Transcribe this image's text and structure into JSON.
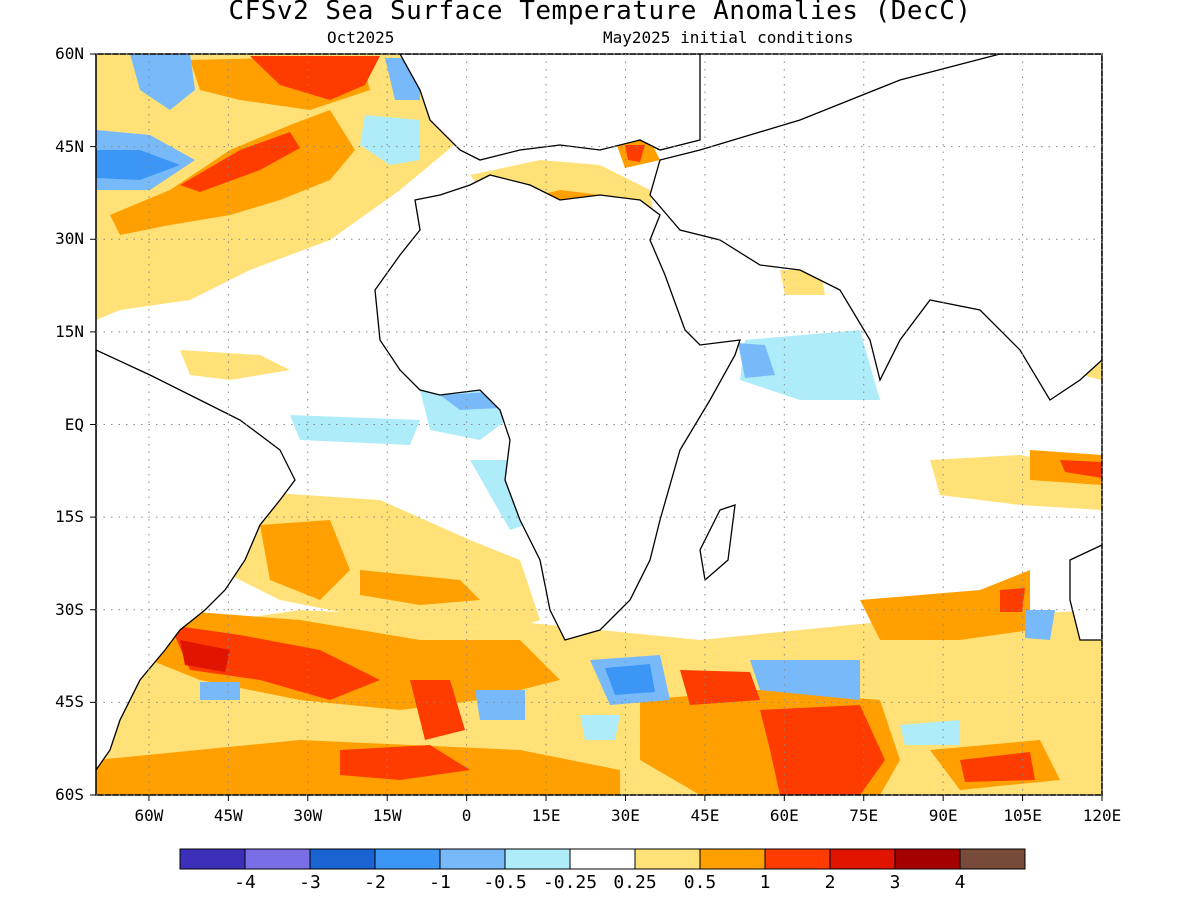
{
  "title": "CFSv2 Sea Surface Temperature Anomalies (DecC)",
  "subtitle_left": "Oct2025",
  "subtitle_right": "May2025 initial conditions",
  "map": {
    "projection": "cylindrical-equidistant",
    "lon_range": [
      -70,
      120
    ],
    "lat_range": [
      -60,
      60
    ],
    "lat_labels": [
      "60N",
      "45N",
      "30N",
      "15N",
      "EQ",
      "15S",
      "30S",
      "45S",
      "60S"
    ],
    "lon_labels": [
      "60W",
      "45W",
      "30W",
      "15W",
      "0",
      "15E",
      "30E",
      "45E",
      "60E",
      "75E",
      "90E",
      "105E",
      "120E"
    ],
    "grid": "dotted",
    "land_color": "#ffffff",
    "coastline_color": "#000000"
  },
  "colorbar": {
    "colors": [
      "#3c2fb9",
      "#7a6ee6",
      "#1964d2",
      "#3c96f5",
      "#78b9fa",
      "#afecfa",
      "#ffffff",
      "#ffe178",
      "#ffa000",
      "#ff3c00",
      "#e11400",
      "#a50000",
      "#784a3a"
    ],
    "labels": [
      "-4",
      "-3",
      "-2",
      "-1",
      "-0.5",
      "-0.25",
      "0.25",
      "0.5",
      "1",
      "2",
      "3",
      "4"
    ]
  }
}
